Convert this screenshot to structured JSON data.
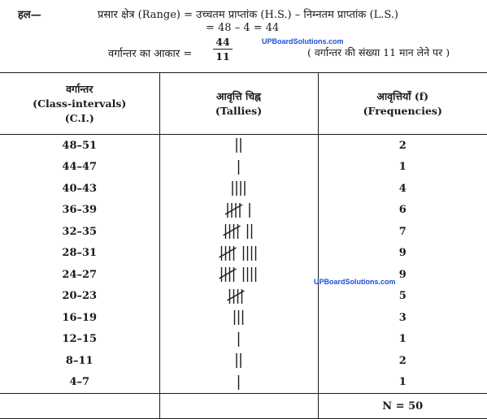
{
  "heading": {
    "label": "हल—",
    "range_line": "प्रसार क्षेत्र (Range) = उच्चतम प्राप्तांक (H.S.) – निम्नतम प्राप्तांक (L.S.)",
    "calc_line": "= 48 – 4 = 44",
    "size_label": "वर्गान्तर का आकार =",
    "fraction_num": "44",
    "fraction_den": "11",
    "note": "( वर्गान्तर की संख्या 11 मान लेने पर )"
  },
  "watermarks": [
    "UPBoardSolutions.com",
    "UPBoardSolutions.com"
  ],
  "table": {
    "headers": [
      [
        "वर्गान्तर",
        "(Class-intervals)",
        "(C.I.)"
      ],
      [
        "आवृत्ति चिह्न",
        "(Tallies)"
      ],
      [
        "आवृत्तियाँ (f)",
        "(Frequencies)"
      ]
    ],
    "rows": [
      {
        "ci": "48–51",
        "tally": 2,
        "freq": "2"
      },
      {
        "ci": "44–47",
        "tally": 1,
        "freq": "1"
      },
      {
        "ci": "40–43",
        "tally": 4,
        "freq": "4"
      },
      {
        "ci": "36–39",
        "tally": 6,
        "freq": "6"
      },
      {
        "ci": "32–35",
        "tally": 7,
        "freq": "7"
      },
      {
        "ci": "28–31",
        "tally": 9,
        "freq": "9"
      },
      {
        "ci": "24–27",
        "tally": 9,
        "freq": "9"
      },
      {
        "ci": "20–23",
        "tally": 5,
        "freq": "5"
      },
      {
        "ci": "16–19",
        "tally": 3,
        "freq": "3"
      },
      {
        "ci": "12–15",
        "tally": 1,
        "freq": "1"
      },
      {
        "ci": "8–11",
        "tally": 2,
        "freq": "2"
      },
      {
        "ci": "4–7",
        "tally": 1,
        "freq": "1"
      }
    ],
    "total": "N = 50"
  }
}
